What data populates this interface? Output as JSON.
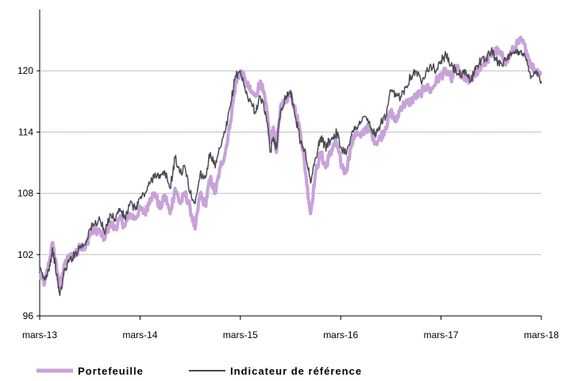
{
  "chart_data": {
    "type": "line",
    "title": "",
    "xlabel": "",
    "ylabel": "",
    "x_ticks": [
      "mars-13",
      "mars-14",
      "mars-15",
      "mars-16",
      "mars-17",
      "mars-18"
    ],
    "xlim": [
      2013.0,
      2018.0
    ],
    "ylim": [
      96,
      126
    ],
    "y_ticks": [
      96,
      102,
      108,
      114,
      120
    ],
    "grid": {
      "horizontal": true,
      "style": "dotted",
      "color": "#808080"
    },
    "legend": {
      "position": "bottom"
    },
    "series": [
      {
        "name": "Portefeuille",
        "color": "#C8A2D8",
        "x": [
          2013.0,
          2013.05,
          2013.1,
          2013.13,
          2013.17,
          2013.2,
          2013.25,
          2013.3,
          2013.35,
          2013.4,
          2013.45,
          2013.5,
          2013.55,
          2013.6,
          2013.65,
          2013.7,
          2013.75,
          2013.8,
          2013.85,
          2013.9,
          2013.95,
          2014.0,
          2014.05,
          2014.1,
          2014.15,
          2014.2,
          2014.25,
          2014.3,
          2014.35,
          2014.4,
          2014.45,
          2014.5,
          2014.55,
          2014.6,
          2014.65,
          2014.7,
          2014.75,
          2014.8,
          2014.85,
          2014.9,
          2014.95,
          2015.0,
          2015.05,
          2015.1,
          2015.15,
          2015.2,
          2015.25,
          2015.3,
          2015.33,
          2015.36,
          2015.4,
          2015.45,
          2015.5,
          2015.55,
          2015.6,
          2015.65,
          2015.7,
          2015.75,
          2015.8,
          2015.85,
          2015.88,
          2015.92,
          2015.96,
          2016.0,
          2016.05,
          2016.1,
          2016.15,
          2016.2,
          2016.25,
          2016.3,
          2016.35,
          2016.4,
          2016.45,
          2016.5,
          2016.55,
          2016.6,
          2016.65,
          2016.7,
          2016.75,
          2016.8,
          2016.85,
          2016.9,
          2016.95,
          2017.0,
          2017.05,
          2017.1,
          2017.15,
          2017.2,
          2017.25,
          2017.3,
          2017.35,
          2017.4,
          2017.45,
          2017.5,
          2017.55,
          2017.6,
          2017.65,
          2017.7,
          2017.75,
          2017.8,
          2017.85,
          2017.9,
          2017.95,
          2018.0
        ],
        "values": [
          100.0,
          99.2,
          101.5,
          103.2,
          100.5,
          98.8,
          101.0,
          102.0,
          101.8,
          103.0,
          102.5,
          104.0,
          104.5,
          104.2,
          103.5,
          105.2,
          104.5,
          105.5,
          104.8,
          106.0,
          105.5,
          106.5,
          106.0,
          107.5,
          108.0,
          106.5,
          107.8,
          106.0,
          108.5,
          107.0,
          108.0,
          106.5,
          104.5,
          108.0,
          106.8,
          109.5,
          108.0,
          110.5,
          112.0,
          115.0,
          118.5,
          120.0,
          119.0,
          118.0,
          117.5,
          119.0,
          117.0,
          113.0,
          114.5,
          112.0,
          116.5,
          117.0,
          118.0,
          116.0,
          114.0,
          110.0,
          106.0,
          110.0,
          112.0,
          110.5,
          111.5,
          112.5,
          113.0,
          111.0,
          110.0,
          112.5,
          114.0,
          113.5,
          114.5,
          114.0,
          113.0,
          113.5,
          114.5,
          116.0,
          115.0,
          116.5,
          116.8,
          117.0,
          117.5,
          117.8,
          118.5,
          118.0,
          119.0,
          119.5,
          120.0,
          119.2,
          120.5,
          119.5,
          119.0,
          119.2,
          119.8,
          120.5,
          121.0,
          121.5,
          122.0,
          121.5,
          120.8,
          121.8,
          122.5,
          123.0,
          122.0,
          120.5,
          120.0,
          119.8
        ]
      },
      {
        "name": "Indicateur de référence",
        "color": "#4A4A52",
        "x": [
          2013.0,
          2013.05,
          2013.1,
          2013.13,
          2013.17,
          2013.2,
          2013.25,
          2013.3,
          2013.35,
          2013.4,
          2013.45,
          2013.5,
          2013.55,
          2013.6,
          2013.65,
          2013.7,
          2013.75,
          2013.8,
          2013.85,
          2013.9,
          2013.95,
          2014.0,
          2014.05,
          2014.1,
          2014.15,
          2014.2,
          2014.25,
          2014.3,
          2014.35,
          2014.4,
          2014.45,
          2014.5,
          2014.55,
          2014.6,
          2014.65,
          2014.7,
          2014.75,
          2014.8,
          2014.85,
          2014.9,
          2014.95,
          2015.0,
          2015.05,
          2015.1,
          2015.15,
          2015.2,
          2015.25,
          2015.3,
          2015.33,
          2015.36,
          2015.4,
          2015.45,
          2015.5,
          2015.55,
          2015.6,
          2015.65,
          2015.7,
          2015.75,
          2015.8,
          2015.85,
          2015.88,
          2015.92,
          2015.96,
          2016.0,
          2016.05,
          2016.1,
          2016.15,
          2016.2,
          2016.25,
          2016.3,
          2016.35,
          2016.4,
          2016.45,
          2016.5,
          2016.55,
          2016.6,
          2016.65,
          2016.7,
          2016.75,
          2016.8,
          2016.85,
          2016.9,
          2016.95,
          2017.0,
          2017.05,
          2017.1,
          2017.15,
          2017.2,
          2017.25,
          2017.3,
          2017.35,
          2017.4,
          2017.45,
          2017.5,
          2017.55,
          2017.6,
          2017.65,
          2017.7,
          2017.75,
          2017.8,
          2017.85,
          2017.9,
          2017.95,
          2018.0
        ],
        "values": [
          100.5,
          99.5,
          101.0,
          102.5,
          100.0,
          98.0,
          100.5,
          101.5,
          102.0,
          102.8,
          103.0,
          104.5,
          105.0,
          105.5,
          104.0,
          106.0,
          105.5,
          106.5,
          105.5,
          107.0,
          106.5,
          107.5,
          108.0,
          109.0,
          110.0,
          109.5,
          110.0,
          108.5,
          111.5,
          110.0,
          110.5,
          108.0,
          107.0,
          110.0,
          109.5,
          112.0,
          110.5,
          112.5,
          114.0,
          116.5,
          119.5,
          120.0,
          118.0,
          117.0,
          116.0,
          117.5,
          116.0,
          112.0,
          113.5,
          112.5,
          116.0,
          117.5,
          118.0,
          115.5,
          113.0,
          112.0,
          109.0,
          111.5,
          113.5,
          112.5,
          113.0,
          113.5,
          114.0,
          112.5,
          112.0,
          113.5,
          114.5,
          115.0,
          115.5,
          114.5,
          113.5,
          115.0,
          115.5,
          118.0,
          117.5,
          117.5,
          118.5,
          119.5,
          120.0,
          119.0,
          120.0,
          120.5,
          120.0,
          121.0,
          121.5,
          120.5,
          120.0,
          119.5,
          119.8,
          119.0,
          120.5,
          121.0,
          121.2,
          122.0,
          121.0,
          120.8,
          121.0,
          121.5,
          121.8,
          122.0,
          121.0,
          119.5,
          120.0,
          119.0
        ]
      }
    ]
  }
}
